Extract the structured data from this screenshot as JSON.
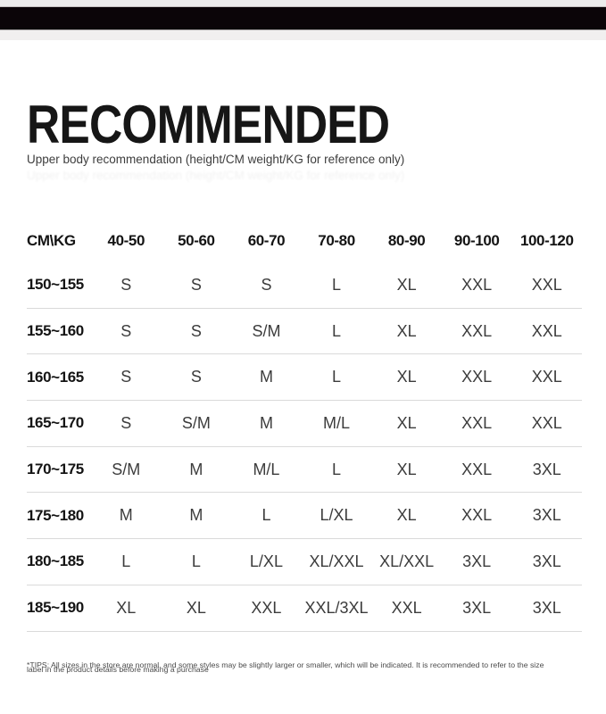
{
  "page": {
    "title": "RECOMMENDED",
    "subtitle": "Upper body recommendation (height/CM weight/KG for reference only)",
    "footnote_line1": "*TIPS: All sizes in the store are normal, and some styles may be slightly larger or smaller, which will be indicated. It is recommended to refer to the size",
    "footnote_line2": "label in the product details before making a purchase"
  },
  "colors": {
    "banner": "#0b0508",
    "banner_strip_top": "#ececec",
    "banner_strip_bottom": "#f1efef",
    "row_divider": "#dadada",
    "heading_text": "#161616",
    "cell_text": "#3c3c3c"
  },
  "chart_data": {
    "type": "table",
    "corner_label": "CM\\KG",
    "columns": [
      "40-50",
      "50-60",
      "60-70",
      "70-80",
      "80-90",
      "90-100",
      "100-120"
    ],
    "rows": [
      {
        "label": "150~155",
        "values": [
          "S",
          "S",
          "S",
          "L",
          "XL",
          "XXL",
          "XXL"
        ]
      },
      {
        "label": "155~160",
        "values": [
          "S",
          "S",
          "S/M",
          "L",
          "XL",
          "XXL",
          "XXL"
        ]
      },
      {
        "label": "160~165",
        "values": [
          "S",
          "S",
          "M",
          "L",
          "XL",
          "XXL",
          "XXL"
        ]
      },
      {
        "label": "165~170",
        "values": [
          "S",
          "S/M",
          "M",
          "M/L",
          "XL",
          "XXL",
          "XXL"
        ]
      },
      {
        "label": "170~175",
        "values": [
          "S/M",
          "M",
          "M/L",
          "L",
          "XL",
          "XXL",
          "3XL"
        ]
      },
      {
        "label": "175~180",
        "values": [
          "M",
          "M",
          "L",
          "L/XL",
          "XL",
          "XXL",
          "3XL"
        ]
      },
      {
        "label": "180~185",
        "values": [
          "L",
          "L",
          "L/XL",
          "XL/XXL",
          "XL/XXL",
          "3XL",
          "3XL"
        ]
      },
      {
        "label": "185~190",
        "values": [
          "XL",
          "XL",
          "XXL",
          "XXL/3XL",
          "XXL",
          "3XL",
          "3XL"
        ]
      }
    ]
  }
}
